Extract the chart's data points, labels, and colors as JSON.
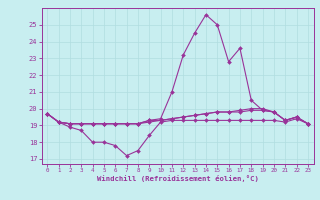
{
  "title": "",
  "xlabel": "Windchill (Refroidissement éolien,°C)",
  "ylabel": "",
  "xlim": [
    -0.5,
    23.5
  ],
  "ylim": [
    16.7,
    26.0
  ],
  "yticks": [
    17,
    18,
    19,
    20,
    21,
    22,
    23,
    24,
    25
  ],
  "xticks": [
    0,
    1,
    2,
    3,
    4,
    5,
    6,
    7,
    8,
    9,
    10,
    11,
    12,
    13,
    14,
    15,
    16,
    17,
    18,
    19,
    20,
    21,
    22,
    23
  ],
  "bg_color": "#c8eef0",
  "grid_color": "#b0dde0",
  "line_color": "#993399",
  "line1": [
    19.7,
    19.2,
    18.9,
    18.7,
    18.0,
    18.0,
    17.8,
    17.2,
    17.5,
    18.4,
    19.2,
    19.3,
    19.3,
    19.3,
    19.3,
    19.3,
    19.3,
    19.3,
    19.3,
    19.3,
    19.3,
    19.2,
    19.4,
    19.1
  ],
  "line2": [
    19.7,
    19.2,
    19.1,
    19.1,
    19.1,
    19.1,
    19.1,
    19.1,
    19.1,
    19.2,
    19.3,
    19.4,
    19.5,
    19.6,
    19.7,
    19.8,
    19.8,
    19.8,
    19.9,
    19.9,
    19.8,
    19.3,
    19.5,
    19.1
  ],
  "line3": [
    19.7,
    19.2,
    19.1,
    19.1,
    19.1,
    19.1,
    19.1,
    19.1,
    19.1,
    19.3,
    19.4,
    21.0,
    23.2,
    24.5,
    25.6,
    25.0,
    22.8,
    23.6,
    20.5,
    19.9,
    19.8,
    19.3,
    19.5,
    19.1
  ],
  "line4": [
    19.7,
    19.2,
    19.1,
    19.1,
    19.1,
    19.1,
    19.1,
    19.1,
    19.1,
    19.3,
    19.3,
    19.4,
    19.5,
    19.6,
    19.7,
    19.8,
    19.8,
    19.9,
    20.0,
    20.0,
    19.8,
    19.3,
    19.5,
    19.1
  ],
  "figsize": [
    3.2,
    2.0
  ],
  "dpi": 100
}
